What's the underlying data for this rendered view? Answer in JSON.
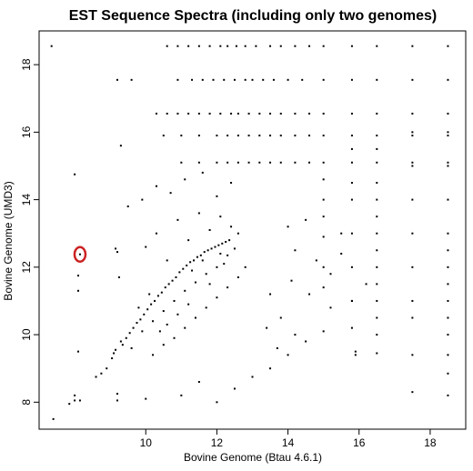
{
  "chart_data": {
    "type": "scatter",
    "title": "EST Sequence Spectra (including only two genomes)",
    "xlabel": "Bovine Genome (Btau 4.6.1)",
    "ylabel": "Bovine Genome (UMD3)",
    "xlim": [
      7.0,
      19.0
    ],
    "ylim": [
      7.2,
      19.0
    ],
    "xticks": [
      10,
      12,
      14,
      16,
      18
    ],
    "yticks": [
      8,
      10,
      12,
      14,
      16,
      18
    ],
    "xtick_labels": [
      "10",
      "12",
      "14",
      "16",
      "18"
    ],
    "ytick_labels": [
      "8",
      "10",
      "12",
      "14",
      "16",
      "18"
    ],
    "grid": false,
    "legend": "none",
    "point_color": "#000000",
    "highlight_color": "#cc2222",
    "highlight": {
      "x": 8.15,
      "y": 12.38
    },
    "points": [
      [
        7.35,
        18.55
      ],
      [
        7.4,
        7.5
      ],
      [
        7.85,
        7.95
      ],
      [
        8.0,
        8.05
      ],
      [
        8.15,
        8.05
      ],
      [
        8.0,
        8.2
      ],
      [
        8.1,
        9.5
      ],
      [
        8.0,
        14.75
      ],
      [
        8.1,
        11.3
      ],
      [
        8.1,
        11.75
      ],
      [
        8.15,
        12.38
      ],
      [
        8.6,
        8.75
      ],
      [
        8.75,
        8.85
      ],
      [
        8.9,
        9.0
      ],
      [
        9.05,
        9.3
      ],
      [
        9.1,
        9.45
      ],
      [
        9.15,
        9.55
      ],
      [
        9.2,
        8.25
      ],
      [
        9.2,
        8.05
      ],
      [
        9.15,
        12.55
      ],
      [
        9.2,
        12.45
      ],
      [
        9.25,
        11.7
      ],
      [
        9.3,
        15.6
      ],
      [
        9.3,
        9.8
      ],
      [
        9.35,
        9.7
      ],
      [
        9.45,
        9.9
      ],
      [
        9.55,
        10.05
      ],
      [
        9.65,
        10.2
      ],
      [
        9.75,
        10.35
      ],
      [
        9.85,
        10.45
      ],
      [
        9.95,
        10.6
      ],
      [
        10.05,
        10.75
      ],
      [
        10.15,
        10.9
      ],
      [
        10.25,
        11.0
      ],
      [
        10.35,
        11.15
      ],
      [
        10.45,
        11.25
      ],
      [
        10.55,
        11.4
      ],
      [
        10.65,
        11.5
      ],
      [
        10.75,
        11.6
      ],
      [
        10.85,
        11.7
      ],
      [
        10.95,
        11.85
      ],
      [
        11.05,
        11.95
      ],
      [
        11.15,
        12.05
      ],
      [
        11.25,
        12.15
      ],
      [
        11.35,
        12.2
      ],
      [
        11.45,
        12.3
      ],
      [
        11.55,
        12.35
      ],
      [
        11.65,
        12.45
      ],
      [
        11.75,
        12.5
      ],
      [
        11.85,
        12.55
      ],
      [
        11.95,
        12.6
      ],
      [
        12.05,
        12.65
      ],
      [
        12.15,
        12.7
      ],
      [
        12.25,
        12.75
      ],
      [
        12.35,
        12.8
      ],
      [
        9.6,
        9.6
      ],
      [
        9.9,
        10.1
      ],
      [
        10.2,
        10.4
      ],
      [
        10.5,
        10.7
      ],
      [
        10.8,
        11.0
      ],
      [
        11.1,
        11.3
      ],
      [
        11.4,
        11.55
      ],
      [
        11.7,
        11.8
      ],
      [
        12.0,
        12.0
      ],
      [
        12.3,
        12.35
      ],
      [
        12.5,
        12.55
      ],
      [
        9.8,
        10.8
      ],
      [
        10.1,
        11.2
      ],
      [
        10.4,
        10.1
      ],
      [
        10.6,
        10.3
      ],
      [
        10.9,
        10.6
      ],
      [
        11.2,
        10.9
      ],
      [
        11.3,
        11.9
      ],
      [
        11.6,
        12.2
      ],
      [
        11.8,
        11.5
      ],
      [
        12.1,
        12.4
      ],
      [
        12.2,
        12.1
      ],
      [
        10.0,
        12.6
      ],
      [
        10.3,
        13.0
      ],
      [
        10.6,
        12.2
      ],
      [
        10.9,
        13.4
      ],
      [
        11.2,
        12.8
      ],
      [
        11.5,
        13.6
      ],
      [
        11.8,
        13.1
      ],
      [
        12.1,
        13.5
      ],
      [
        12.4,
        13.2
      ],
      [
        12.6,
        13.0
      ],
      [
        10.2,
        9.4
      ],
      [
        10.5,
        9.7
      ],
      [
        10.8,
        9.9
      ],
      [
        11.1,
        10.2
      ],
      [
        11.4,
        10.5
      ],
      [
        11.7,
        10.8
      ],
      [
        12.0,
        11.1
      ],
      [
        12.3,
        11.4
      ],
      [
        12.6,
        11.7
      ],
      [
        12.8,
        12.0
      ],
      [
        9.5,
        13.8
      ],
      [
        9.9,
        14.0
      ],
      [
        10.3,
        14.4
      ],
      [
        10.7,
        14.2
      ],
      [
        11.1,
        14.6
      ],
      [
        11.6,
        14.8
      ],
      [
        12.0,
        14.1
      ],
      [
        12.4,
        14.5
      ],
      [
        10.0,
        8.1
      ],
      [
        11.0,
        8.2
      ],
      [
        12.0,
        8.0
      ],
      [
        13.0,
        8.75
      ],
      [
        11.5,
        8.6
      ],
      [
        12.5,
        8.4
      ],
      [
        13.5,
        9.0
      ],
      [
        14.0,
        9.4
      ],
      [
        14.5,
        9.8
      ],
      [
        15.0,
        10.1
      ],
      [
        9.2,
        17.55
      ],
      [
        9.6,
        17.55
      ],
      [
        10.6,
        18.55
      ],
      [
        10.9,
        18.55
      ],
      [
        11.2,
        18.55
      ],
      [
        11.5,
        18.55
      ],
      [
        11.8,
        18.55
      ],
      [
        12.1,
        18.55
      ],
      [
        12.3,
        18.55
      ],
      [
        12.55,
        18.55
      ],
      [
        12.8,
        18.55
      ],
      [
        13.1,
        18.55
      ],
      [
        13.5,
        18.55
      ],
      [
        13.8,
        18.55
      ],
      [
        14.2,
        18.55
      ],
      [
        14.6,
        18.55
      ],
      [
        15.0,
        18.55
      ],
      [
        15.8,
        18.55
      ],
      [
        16.5,
        18.55
      ],
      [
        17.5,
        18.55
      ],
      [
        18.5,
        18.55
      ],
      [
        10.9,
        17.55
      ],
      [
        11.3,
        17.55
      ],
      [
        11.6,
        17.55
      ],
      [
        11.9,
        17.55
      ],
      [
        12.2,
        17.55
      ],
      [
        12.5,
        17.55
      ],
      [
        12.8,
        17.55
      ],
      [
        13.0,
        17.55
      ],
      [
        13.3,
        17.55
      ],
      [
        13.6,
        17.55
      ],
      [
        14.0,
        17.55
      ],
      [
        14.4,
        17.55
      ],
      [
        15.0,
        17.55
      ],
      [
        15.8,
        17.55
      ],
      [
        16.5,
        17.55
      ],
      [
        17.5,
        17.55
      ],
      [
        18.5,
        17.55
      ],
      [
        10.3,
        16.55
      ],
      [
        10.6,
        16.55
      ],
      [
        10.9,
        16.55
      ],
      [
        11.2,
        16.55
      ],
      [
        11.5,
        16.55
      ],
      [
        11.8,
        16.55
      ],
      [
        12.1,
        16.55
      ],
      [
        12.4,
        16.55
      ],
      [
        12.6,
        16.55
      ],
      [
        12.9,
        16.55
      ],
      [
        13.2,
        16.55
      ],
      [
        13.5,
        16.55
      ],
      [
        13.8,
        16.55
      ],
      [
        14.2,
        16.55
      ],
      [
        14.6,
        16.55
      ],
      [
        15.0,
        16.55
      ],
      [
        15.8,
        16.55
      ],
      [
        16.5,
        16.55
      ],
      [
        17.5,
        16.55
      ],
      [
        18.5,
        16.55
      ],
      [
        10.5,
        15.9
      ],
      [
        11.0,
        15.9
      ],
      [
        11.5,
        15.9
      ],
      [
        12.0,
        15.9
      ],
      [
        12.3,
        15.9
      ],
      [
        12.6,
        15.9
      ],
      [
        12.9,
        15.9
      ],
      [
        13.2,
        15.9
      ],
      [
        13.5,
        15.9
      ],
      [
        13.8,
        15.9
      ],
      [
        14.2,
        15.9
      ],
      [
        14.6,
        15.9
      ],
      [
        15.0,
        15.9
      ],
      [
        15.8,
        15.9
      ],
      [
        16.5,
        15.9
      ],
      [
        17.5,
        15.9
      ],
      [
        18.5,
        15.9
      ],
      [
        11.0,
        15.1
      ],
      [
        11.5,
        15.1
      ],
      [
        12.0,
        15.1
      ],
      [
        12.3,
        15.1
      ],
      [
        12.6,
        15.1
      ],
      [
        12.9,
        15.1
      ],
      [
        13.2,
        15.1
      ],
      [
        13.5,
        15.1
      ],
      [
        13.8,
        15.1
      ],
      [
        14.2,
        15.1
      ],
      [
        14.6,
        15.1
      ],
      [
        15.0,
        15.1
      ],
      [
        15.8,
        15.1
      ],
      [
        16.5,
        15.1
      ],
      [
        17.5,
        15.1
      ],
      [
        18.5,
        15.1
      ],
      [
        14.0,
        13.2
      ],
      [
        14.5,
        13.4
      ],
      [
        15.0,
        12.9
      ],
      [
        15.5,
        13.0
      ],
      [
        14.2,
        12.5
      ],
      [
        14.8,
        12.2
      ],
      [
        15.2,
        11.8
      ],
      [
        15.5,
        12.4
      ],
      [
        14.1,
        11.6
      ],
      [
        14.6,
        11.2
      ],
      [
        15.2,
        10.8
      ],
      [
        15.8,
        11.0
      ],
      [
        16.2,
        11.5
      ],
      [
        13.5,
        11.2
      ],
      [
        13.8,
        10.5
      ],
      [
        14.2,
        10.0
      ],
      [
        13.4,
        10.2
      ],
      [
        13.7,
        9.6
      ],
      [
        15.9,
        9.4
      ],
      [
        15.9,
        9.5
      ],
      [
        16.5,
        9.45
      ],
      [
        17.5,
        9.4
      ],
      [
        18.5,
        9.4
      ],
      [
        18.5,
        8.85
      ],
      [
        18.5,
        8.2
      ],
      [
        17.5,
        8.3
      ],
      [
        16.5,
        14.0
      ],
      [
        16.5,
        13.5
      ],
      [
        16.5,
        13.0
      ],
      [
        16.5,
        12.5
      ],
      [
        16.5,
        12.0
      ],
      [
        16.5,
        11.5
      ],
      [
        16.5,
        11.0
      ],
      [
        16.5,
        10.5
      ],
      [
        16.5,
        10.0
      ],
      [
        16.5,
        14.5
      ],
      [
        16.5,
        15.5
      ],
      [
        17.5,
        14.0
      ],
      [
        17.5,
        13.0
      ],
      [
        17.5,
        12.0
      ],
      [
        17.5,
        11.0
      ],
      [
        17.5,
        10.5
      ],
      [
        17.5,
        15.0
      ],
      [
        17.5,
        16.0
      ],
      [
        18.5,
        14.0
      ],
      [
        18.5,
        13.0
      ],
      [
        18.5,
        12.0
      ],
      [
        18.5,
        11.0
      ],
      [
        18.5,
        10.5
      ],
      [
        18.5,
        10.0
      ],
      [
        18.5,
        15.0
      ],
      [
        18.5,
        16.0
      ],
      [
        18.5,
        12.5
      ],
      [
        18.5,
        11.5
      ],
      [
        15.8,
        14.0
      ],
      [
        15.8,
        13.0
      ],
      [
        15.8,
        12.0
      ],
      [
        15.8,
        11.0
      ],
      [
        15.8,
        10.2
      ],
      [
        15.8,
        14.5
      ],
      [
        15.8,
        15.5
      ],
      [
        15.0,
        14.0
      ],
      [
        15.0,
        13.5
      ],
      [
        15.0,
        12.0
      ],
      [
        15.0,
        11.4
      ],
      [
        15.0,
        14.6
      ]
    ]
  }
}
